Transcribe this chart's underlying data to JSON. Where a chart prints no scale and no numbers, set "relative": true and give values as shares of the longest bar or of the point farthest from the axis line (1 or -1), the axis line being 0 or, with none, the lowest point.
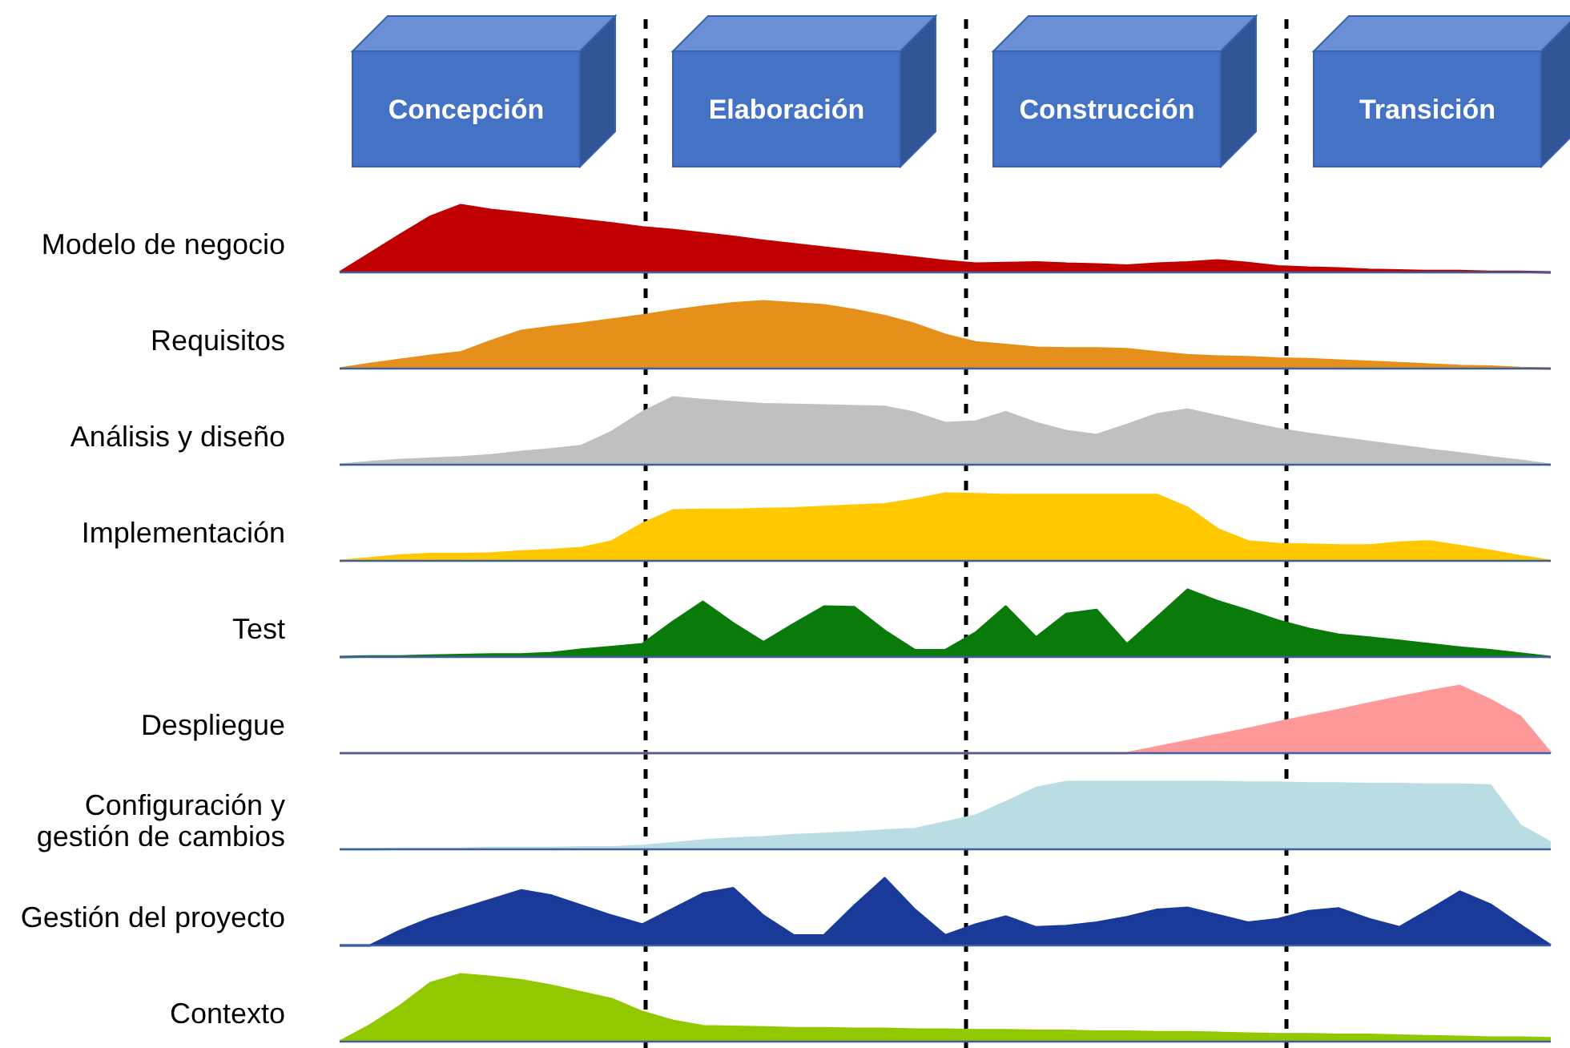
{
  "chart_data": [
    {
      "type": "other",
      "annotations": [
        "Concepción",
        "Elaboración",
        "Construcción",
        "Transición"
      ]
    },
    {
      "type": "area",
      "title": "Modelo de negocio",
      "relative": true,
      "color": "#c00000",
      "categories": [
        null,
        null,
        null,
        null,
        null,
        null,
        null,
        null,
        null,
        null,
        null,
        null,
        null,
        null,
        null,
        null,
        null,
        null,
        null,
        null,
        null,
        null,
        null,
        null,
        null,
        null,
        null,
        null,
        null,
        null,
        null,
        null,
        null,
        null,
        null,
        null,
        null,
        null,
        null,
        null,
        null
      ],
      "values": [
        0,
        0.28,
        0.56,
        0.83,
        1,
        0.93,
        0.88,
        0.83,
        0.78,
        0.73,
        0.67,
        0.63,
        0.58,
        0.53,
        0.47,
        0.42,
        0.37,
        0.32,
        0.27,
        0.22,
        0.17,
        0.13,
        0.14,
        0.15,
        0.13,
        0.12,
        0.1,
        0.13,
        0.15,
        0.18,
        0.14,
        0.09,
        0.07,
        0.06,
        0.04,
        0.03,
        0.02,
        0.02,
        0.01,
        0.01,
        0
      ]
    },
    {
      "type": "area",
      "title": "Requisitos",
      "relative": true,
      "color": "#e5901a",
      "categories": [
        null,
        null,
        null,
        null,
        null,
        null,
        null,
        null,
        null,
        null,
        null,
        null,
        null,
        null,
        null,
        null,
        null,
        null,
        null,
        null,
        null,
        null,
        null,
        null,
        null,
        null,
        null,
        null,
        null,
        null,
        null,
        null,
        null,
        null,
        null,
        null,
        null,
        null,
        null,
        null,
        null
      ],
      "values": [
        0,
        0.07,
        0.13,
        0.19,
        0.24,
        0.41,
        0.56,
        0.62,
        0.67,
        0.73,
        0.79,
        0.86,
        0.92,
        0.97,
        1,
        0.97,
        0.94,
        0.87,
        0.78,
        0.66,
        0.5,
        0.39,
        0.35,
        0.31,
        0.3,
        0.3,
        0.29,
        0.24,
        0.2,
        0.18,
        0.17,
        0.15,
        0.14,
        0.12,
        0.1,
        0.08,
        0.06,
        0.04,
        0.03,
        0.01,
        0
      ]
    },
    {
      "type": "area",
      "title": "Análisis y diseño",
      "relative": true,
      "color": "#c0c0c0",
      "categories": [
        null,
        null,
        null,
        null,
        null,
        null,
        null,
        null,
        null,
        null,
        null,
        null,
        null,
        null,
        null,
        null,
        null,
        null,
        null,
        null,
        null,
        null,
        null,
        null,
        null,
        null,
        null,
        null,
        null,
        null,
        null,
        null,
        null,
        null,
        null,
        null,
        null,
        null,
        null,
        null,
        null
      ],
      "values": [
        0,
        0.04,
        0.07,
        0.09,
        0.11,
        0.14,
        0.19,
        0.23,
        0.28,
        0.49,
        0.78,
        1,
        0.96,
        0.93,
        0.9,
        0.89,
        0.88,
        0.87,
        0.86,
        0.77,
        0.62,
        0.64,
        0.78,
        0.62,
        0.5,
        0.44,
        0.59,
        0.75,
        0.82,
        0.72,
        0.62,
        0.53,
        0.46,
        0.4,
        0.34,
        0.28,
        0.22,
        0.17,
        0.11,
        0.06,
        0
      ]
    },
    {
      "type": "area",
      "title": "Implementación",
      "relative": true,
      "color": "#ffc800",
      "categories": [
        null,
        null,
        null,
        null,
        null,
        null,
        null,
        null,
        null,
        null,
        null,
        null,
        null,
        null,
        null,
        null,
        null,
        null,
        null,
        null,
        null,
        null,
        null,
        null,
        null,
        null,
        null,
        null,
        null,
        null,
        null,
        null,
        null,
        null,
        null,
        null,
        null,
        null,
        null,
        null,
        null
      ],
      "values": [
        0,
        0.04,
        0.08,
        0.1,
        0.1,
        0.11,
        0.14,
        0.16,
        0.19,
        0.29,
        0.55,
        0.75,
        0.76,
        0.76,
        0.77,
        0.78,
        0.8,
        0.82,
        0.84,
        0.91,
        1,
        0.99,
        0.98,
        0.98,
        0.98,
        0.98,
        0.98,
        0.98,
        0.79,
        0.47,
        0.29,
        0.25,
        0.24,
        0.23,
        0.23,
        0.27,
        0.29,
        0.22,
        0.15,
        0.07,
        0
      ]
    },
    {
      "type": "area",
      "title": "Test",
      "relative": true,
      "color": "#0a7a0a",
      "categories": [
        null,
        null,
        null,
        null,
        null,
        null,
        null,
        null,
        null,
        null,
        null,
        null,
        null,
        null,
        null,
        null,
        null,
        null,
        null,
        null,
        null,
        null,
        null,
        null,
        null,
        null,
        null,
        null,
        null,
        null,
        null,
        null,
        null,
        null,
        null,
        null,
        null,
        null,
        null,
        null,
        null
      ],
      "values": [
        0,
        0.01,
        0.01,
        0.02,
        0.03,
        0.04,
        0.04,
        0.06,
        0.11,
        0.15,
        0.19,
        0.52,
        0.82,
        0.5,
        0.22,
        0.49,
        0.75,
        0.74,
        0.39,
        0.1,
        0.1,
        0.36,
        0.75,
        0.29,
        0.64,
        0.7,
        0.19,
        0.59,
        1,
        0.83,
        0.69,
        0.54,
        0.42,
        0.33,
        0.29,
        0.24,
        0.19,
        0.14,
        0.1,
        0.05,
        0
      ]
    },
    {
      "type": "area",
      "title": "Despliegue",
      "relative": true,
      "color": "#ff9999",
      "categories": [
        null,
        null,
        null,
        null,
        null,
        null,
        null,
        null,
        null,
        null,
        null,
        null,
        null,
        null,
        null,
        null,
        null,
        null,
        null,
        null,
        null,
        null,
        null,
        null,
        null,
        null,
        null,
        null,
        null,
        null,
        null,
        null,
        null,
        null,
        null,
        null,
        null,
        null,
        null,
        null,
        null
      ],
      "values": [
        0,
        0,
        0,
        0,
        0,
        0,
        0,
        0,
        0,
        0,
        0,
        0,
        0,
        0,
        0,
        0,
        0,
        0,
        0,
        0,
        0,
        0,
        0,
        0,
        0,
        0,
        0,
        0.09,
        0.18,
        0.27,
        0.36,
        0.46,
        0.55,
        0.64,
        0.74,
        0.83,
        0.92,
        1,
        0.79,
        0.54,
        0
      ]
    },
    {
      "type": "area",
      "title": "Configuración y gestión de cambios",
      "relative": true,
      "color": "#b9dde3",
      "categories": [
        null,
        null,
        null,
        null,
        null,
        null,
        null,
        null,
        null,
        null,
        null,
        null,
        null,
        null,
        null,
        null,
        null,
        null,
        null,
        null,
        null,
        null,
        null,
        null,
        null,
        null,
        null,
        null,
        null,
        null,
        null,
        null,
        null,
        null,
        null,
        null,
        null,
        null,
        null,
        null,
        null
      ],
      "values": [
        0,
        0,
        0.01,
        0.01,
        0.01,
        0.02,
        0.02,
        0.02,
        0.03,
        0.03,
        0.05,
        0.09,
        0.13,
        0.16,
        0.18,
        0.21,
        0.23,
        0.25,
        0.28,
        0.3,
        0.4,
        0.5,
        0.7,
        0.91,
        1,
        1,
        1,
        1,
        1,
        1,
        0.99,
        0.99,
        0.98,
        0.98,
        0.97,
        0.97,
        0.96,
        0.96,
        0.95,
        0.35,
        0.1
      ]
    },
    {
      "type": "area",
      "title": "Gestión del proyecto",
      "relative": true,
      "color": "#1a3a9a",
      "categories": [
        null,
        null,
        null,
        null,
        null,
        null,
        null,
        null,
        null,
        null,
        null,
        null,
        null,
        null,
        null,
        null,
        null,
        null,
        null,
        null,
        null,
        null,
        null,
        null,
        null,
        null,
        null,
        null,
        null,
        null,
        null,
        null,
        null,
        null,
        null,
        null,
        null,
        null,
        null,
        null,
        null
      ],
      "values": [
        0,
        0,
        0.22,
        0.4,
        0.54,
        0.68,
        0.82,
        0.74,
        0.59,
        0.44,
        0.31,
        0.54,
        0.77,
        0.85,
        0.44,
        0.15,
        0.15,
        0.59,
        1,
        0.53,
        0.15,
        0.31,
        0.43,
        0.27,
        0.29,
        0.34,
        0.42,
        0.53,
        0.56,
        0.45,
        0.34,
        0.39,
        0.51,
        0.55,
        0.39,
        0.27,
        0.53,
        0.8,
        0.61,
        0.3,
        0
      ]
    },
    {
      "type": "area",
      "title": "Contexto",
      "relative": true,
      "color": "#92c800",
      "categories": [
        null,
        null,
        null,
        null,
        null,
        null,
        null,
        null,
        null,
        null,
        null,
        null,
        null,
        null,
        null,
        null,
        null,
        null,
        null,
        null,
        null,
        null,
        null,
        null,
        null,
        null,
        null,
        null,
        null,
        null,
        null,
        null,
        null,
        null,
        null,
        null,
        null,
        null,
        null,
        null,
        null
      ],
      "values": [
        0,
        0.24,
        0.53,
        0.87,
        1,
        0.96,
        0.91,
        0.83,
        0.73,
        0.63,
        0.44,
        0.31,
        0.23,
        0.22,
        0.21,
        0.2,
        0.2,
        0.19,
        0.19,
        0.18,
        0.18,
        0.17,
        0.17,
        0.16,
        0.16,
        0.15,
        0.15,
        0.14,
        0.14,
        0.13,
        0.12,
        0.11,
        0.11,
        0.1,
        0.1,
        0.09,
        0.08,
        0.07,
        0.06,
        0.06,
        0.05
      ]
    }
  ]
}
